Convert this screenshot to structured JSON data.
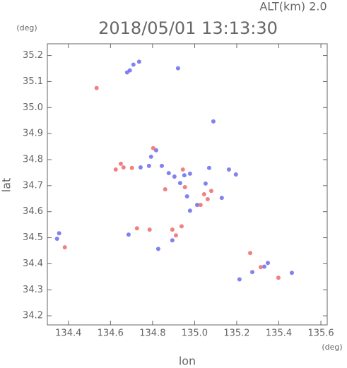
{
  "chart_data": {
    "type": "scatter",
    "title": "2018/05/01 13:13:30",
    "subtitle": "ALT(km)  2.0",
    "x_label": "lon",
    "y_label": "lat",
    "x_unit": "(deg)",
    "y_unit": "(deg)",
    "xlim": [
      134.3,
      135.63
    ],
    "ylim": [
      34.165,
      35.245
    ],
    "xticks": [
      134.4,
      134.6,
      134.8,
      {
        "value": 135.0,
        "label": "135.0"
      },
      135.2,
      135.4,
      135.6
    ],
    "yticks": [
      34.2,
      34.3,
      34.4,
      34.5,
      34.6,
      34.7,
      34.8,
      34.9,
      {
        "value": 35.0,
        "label": "35.0"
      },
      35.1,
      35.2
    ],
    "series": [
      {
        "color": "#6b6bee",
        "x": [
          134.692,
          134.709,
          134.679,
          134.921,
          134.736,
          134.817,
          134.793,
          134.844,
          134.877,
          134.951,
          134.978,
          134.931,
          135.089,
          135.196,
          135.163,
          135.069,
          134.964,
          135.012,
          134.978,
          134.356,
          134.346,
          134.686,
          134.827,
          134.894,
          135.274,
          135.331,
          135.348,
          135.462,
          135.213,
          135.052,
          135.129,
          134.904,
          134.783,
          134.743
        ],
        "values": [
          35.143,
          35.165,
          35.135,
          35.151,
          35.176,
          34.836,
          34.811,
          34.776,
          34.748,
          34.74,
          34.746,
          34.71,
          34.947,
          34.743,
          34.762,
          34.768,
          34.659,
          34.626,
          34.604,
          34.517,
          34.496,
          34.512,
          34.457,
          34.49,
          34.368,
          34.389,
          34.403,
          34.365,
          34.34,
          34.708,
          34.653,
          34.735,
          34.776,
          34.77
        ]
      },
      {
        "color": "#ee6b6b",
        "x": [
          134.534,
          134.383,
          134.662,
          134.649,
          134.702,
          134.803,
          134.786,
          134.726,
          134.938,
          134.894,
          134.911,
          135.028,
          135.045,
          135.079,
          135.062,
          134.86,
          135.264,
          135.398,
          135.314,
          134.625,
          134.944,
          134.954
        ],
        "values": [
          35.075,
          34.463,
          34.77,
          34.784,
          34.768,
          34.844,
          34.531,
          34.536,
          34.544,
          34.531,
          34.509,
          34.626,
          34.667,
          34.68,
          34.648,
          34.686,
          34.441,
          34.346,
          34.387,
          34.762,
          34.762,
          34.694
        ]
      }
    ]
  }
}
